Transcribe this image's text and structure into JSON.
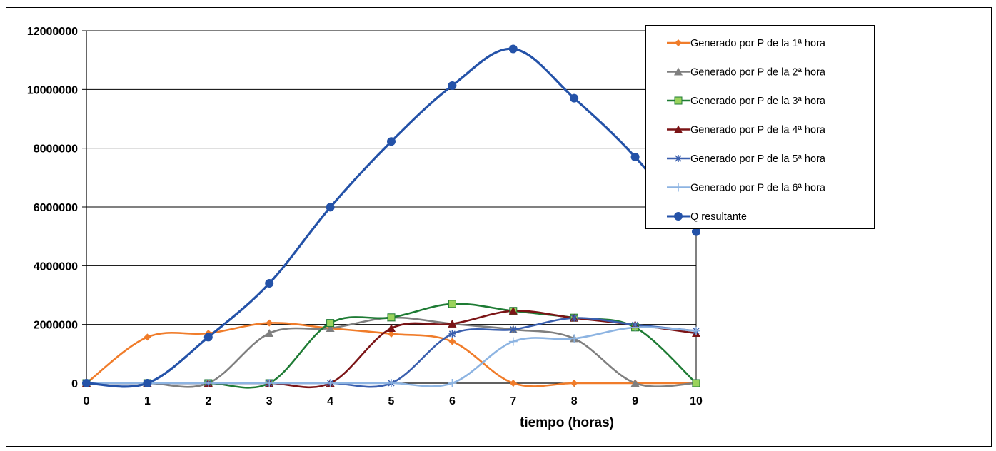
{
  "chart_data": {
    "type": "line",
    "title": "",
    "xlabel": "tiempo (horas)",
    "ylabel": "",
    "x": [
      0,
      1,
      2,
      3,
      4,
      5,
      6,
      7,
      8,
      9,
      10
    ],
    "xlim": [
      0,
      10
    ],
    "ylim": [
      0,
      12000000
    ],
    "yticks": [
      0,
      2000000,
      4000000,
      6000000,
      8000000,
      10000000,
      12000000
    ],
    "ytick_labels": [
      "0",
      "2000000",
      "4000000",
      "6000000",
      "8000000",
      "10000000",
      "12000000"
    ],
    "xtick_labels": [
      "0",
      "1",
      "2",
      "3",
      "4",
      "5",
      "6",
      "7",
      "8",
      "9",
      "10"
    ],
    "grid": "horizontal",
    "legend_position": "top-right",
    "smooth": true,
    "series": [
      {
        "name": "Generado por P de la 1ª hora",
        "color": "#F07C2A",
        "marker": "diamond",
        "values": [
          0,
          1570000,
          1700000,
          2050000,
          1870000,
          1680000,
          1420000,
          0,
          0,
          0,
          0
        ]
      },
      {
        "name": "Generado por P de la 2ª hora",
        "color": "#7F7F7F",
        "marker": "triangle",
        "values": [
          0,
          0,
          0,
          1700000,
          1870000,
          2230000,
          2020000,
          1830000,
          1520000,
          0,
          0
        ]
      },
      {
        "name": "Generado por P de la 3ª hora",
        "color": "#1E7B34",
        "marker": "square",
        "marker_fill": "#9BD35C",
        "values": [
          0,
          0,
          0,
          0,
          2050000,
          2240000,
          2700000,
          2460000,
          2230000,
          1900000,
          0
        ]
      },
      {
        "name": "Generado por P de la 4ª hora",
        "color": "#7B1416",
        "marker": "triangle",
        "values": [
          0,
          0,
          0,
          0,
          0,
          1870000,
          2020000,
          2460000,
          2220000,
          1990000,
          1700000
        ]
      },
      {
        "name": "Generado por P de la 5ª hora",
        "color": "#3A5FAE",
        "marker": "star",
        "values": [
          0,
          0,
          0,
          0,
          0,
          0,
          1680000,
          1830000,
          2220000,
          1990000,
          1780000
        ]
      },
      {
        "name": "Generado por P de la 6ª hora",
        "color": "#8DB4E2",
        "marker": "plus",
        "values": [
          0,
          0,
          0,
          0,
          0,
          0,
          0,
          1420000,
          1520000,
          1900000,
          1780000
        ]
      },
      {
        "name": "Q resultante",
        "color": "#2452A8",
        "marker": "circle",
        "thick": true,
        "values": [
          0,
          0,
          1570000,
          3400000,
          5990000,
          8230000,
          10130000,
          11380000,
          9700000,
          7700000,
          5160000
        ]
      }
    ]
  }
}
